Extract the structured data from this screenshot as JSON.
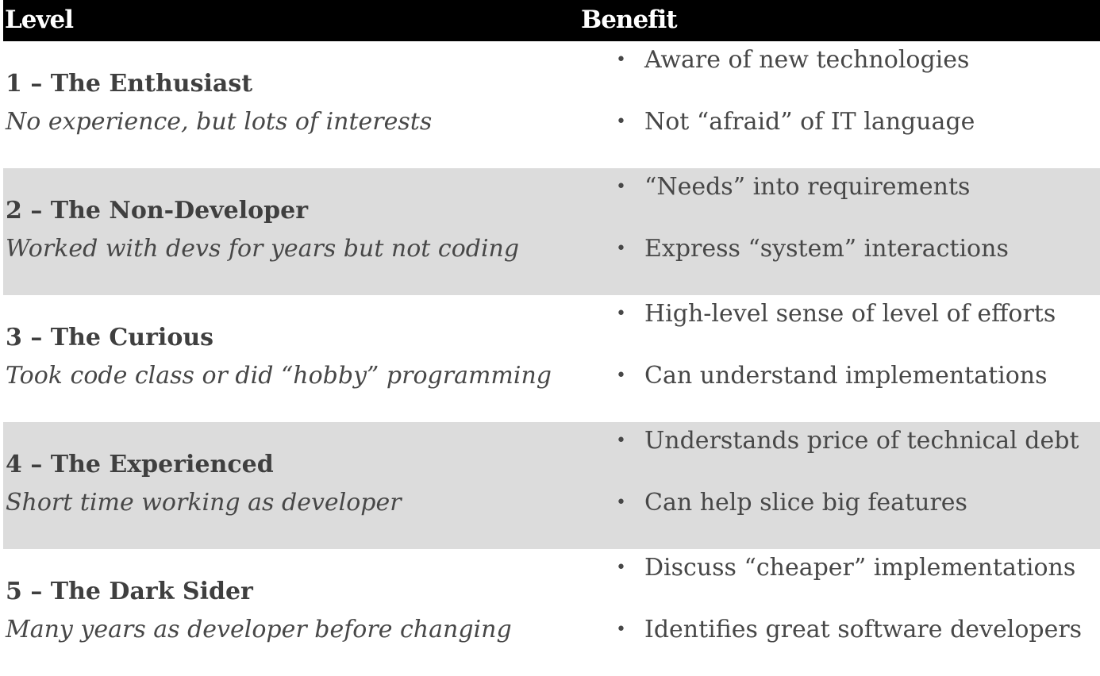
{
  "header": {
    "level": "Level",
    "benefit": "Benefit"
  },
  "rows": [
    {
      "title": "1 – The Enthusiast",
      "subtitle": "No experience, but lots of interests",
      "benefits": [
        "Aware of new technologies",
        "Not “afraid” of IT language"
      ]
    },
    {
      "title": "2 – The Non-Developer",
      "subtitle": "Worked with devs for years but not coding",
      "benefits": [
        "“Needs” into requirements",
        "Express “system” interactions"
      ]
    },
    {
      "title": "3 – The Curious",
      "subtitle": "Took code class or did “hobby” programming",
      "benefits": [
        "High-level sense of level of efforts",
        "Can understand implementations"
      ]
    },
    {
      "title": "4 – The Experienced",
      "subtitle": "Short time working as developer",
      "benefits": [
        "Understands price of technical debt",
        "Can help slice big features"
      ]
    },
    {
      "title": "5 – The Dark Sider",
      "subtitle": "Many years as developer before changing",
      "benefits": [
        "Discuss “cheaper” implementations",
        "Identifies great software developers"
      ]
    }
  ],
  "colors": {
    "header_bg": "#000000",
    "header_text": "#ffffff",
    "shaded_row": "#dcdcdc",
    "text": "#444444"
  }
}
